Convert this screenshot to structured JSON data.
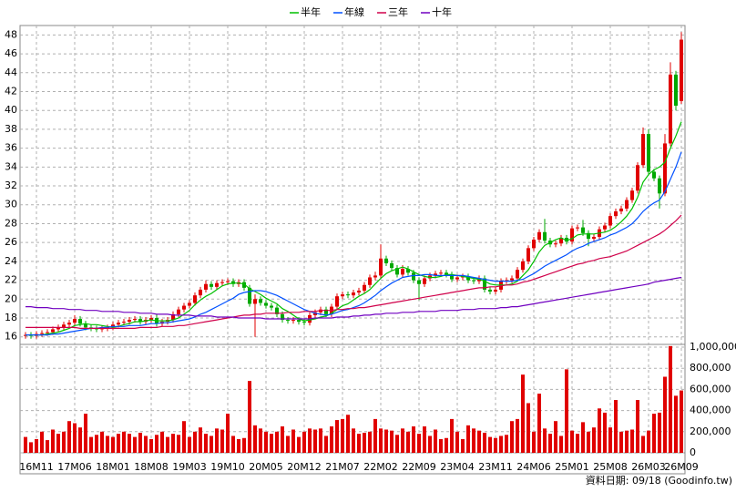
{
  "chart_data": {
    "type": "candlestick",
    "categories": [
      null,
      null,
      "16M11",
      null,
      null,
      null,
      null,
      null,
      null,
      "17M06",
      null,
      null,
      null,
      null,
      null,
      null,
      "18M01",
      null,
      null,
      null,
      null,
      null,
      null,
      "18M08",
      null,
      null,
      null,
      null,
      null,
      null,
      "19M03",
      null,
      null,
      null,
      null,
      null,
      null,
      "19M10",
      null,
      null,
      null,
      null,
      null,
      null,
      "20M05",
      null,
      null,
      null,
      null,
      null,
      null,
      "20M12",
      null,
      null,
      null,
      null,
      null,
      null,
      "21M07",
      null,
      null,
      null,
      null,
      null,
      null,
      "22M02",
      null,
      null,
      null,
      null,
      null,
      null,
      "22M09",
      null,
      null,
      null,
      null,
      null,
      null,
      "23M04",
      null,
      null,
      null,
      null,
      null,
      null,
      "23M11",
      null,
      null,
      null,
      null,
      null,
      null,
      "24M06",
      null,
      null,
      null,
      null,
      null,
      null,
      "25M01",
      null,
      null,
      null,
      null,
      null,
      null,
      "25M08",
      null,
      null,
      null,
      null,
      null,
      null,
      "26M03",
      null,
      null,
      null,
      null,
      null,
      "26M09"
    ],
    "open": [
      16.1,
      16.2,
      16.1,
      16.3,
      16.4,
      16.5,
      16.8,
      17.0,
      17.3,
      17.5,
      17.9,
      17.4,
      17.0,
      16.9,
      16.8,
      16.9,
      17.0,
      17.3,
      17.5,
      17.6,
      17.8,
      17.9,
      17.6,
      17.8,
      18.0,
      17.4,
      17.6,
      17.8,
      18.4,
      18.9,
      19.3,
      19.6,
      20.4,
      21.0,
      21.6,
      21.3,
      21.7,
      21.8,
      21.9,
      21.6,
      21.8,
      21.2,
      19.5,
      20.0,
      19.6,
      19.3,
      19.1,
      18.4,
      17.8,
      17.7,
      17.8,
      17.6,
      17.5,
      18.3,
      18.6,
      18.9,
      18.4,
      19.2,
      20.3,
      20.5,
      20.4,
      20.7,
      20.9,
      21.5,
      22.3,
      22.5,
      24.3,
      23.8,
      23.3,
      22.6,
      23.2,
      22.8,
      22.0,
      21.6,
      22.2,
      22.5,
      22.7,
      22.8,
      22.6,
      22.1,
      22.3,
      22.4,
      22.0,
      21.9,
      22.2,
      21.0,
      20.8,
      21.0,
      21.9,
      22.0,
      22.2,
      23.1,
      24.0,
      25.4,
      26.3,
      27.1,
      26.2,
      25.8,
      25.9,
      26.5,
      26.1,
      27.5,
      27.6,
      27.0,
      26.4,
      26.6,
      27.4,
      27.8,
      28.8,
      29.3,
      29.6,
      30.5,
      31.5,
      34.2,
      37.5,
      33.5,
      32.8,
      31.2,
      36.5,
      43.8,
      41.0
    ],
    "high": [
      16.5,
      16.5,
      16.6,
      16.7,
      16.8,
      17.1,
      17.3,
      17.6,
      17.8,
      18.3,
      18.2,
      17.7,
      17.3,
      17.2,
      17.2,
      17.3,
      17.6,
      17.8,
      17.9,
      18.1,
      18.2,
      18.2,
      18.1,
      18.3,
      18.4,
      17.9,
      18.1,
      18.7,
      19.2,
      19.6,
      19.9,
      20.7,
      21.3,
      22.0,
      21.9,
      22.0,
      22.1,
      22.2,
      22.2,
      22.1,
      22.1,
      21.5,
      20.5,
      20.3,
      19.9,
      19.6,
      19.4,
      18.7,
      18.1,
      18.1,
      18.1,
      17.9,
      18.6,
      18.9,
      19.2,
      19.2,
      19.5,
      20.6,
      20.8,
      20.8,
      21.0,
      21.2,
      21.8,
      22.6,
      22.9,
      25.8,
      24.6,
      24.1,
      23.6,
      23.6,
      23.5,
      23.1,
      22.3,
      22.5,
      22.8,
      23.0,
      23.1,
      23.1,
      22.9,
      22.6,
      22.7,
      22.7,
      22.3,
      22.5,
      22.5,
      21.3,
      21.3,
      22.2,
      22.3,
      22.5,
      23.4,
      24.3,
      25.7,
      26.6,
      27.4,
      28.5,
      26.5,
      26.2,
      26.8,
      26.8,
      27.8,
      27.9,
      28.4,
      27.3,
      26.9,
      27.7,
      28.1,
      29.1,
      29.6,
      29.9,
      30.8,
      31.8,
      34.5,
      38.2,
      38.0,
      33.8,
      33.1,
      37.5,
      45.1,
      44.2,
      48.3
    ],
    "low": [
      15.8,
      15.8,
      15.8,
      16.0,
      16.1,
      16.2,
      16.5,
      16.7,
      17.0,
      17.2,
      17.1,
      16.7,
      16.6,
      16.5,
      16.5,
      16.6,
      16.7,
      17.0,
      17.2,
      17.3,
      17.5,
      17.3,
      17.3,
      17.5,
      17.1,
      17.1,
      17.3,
      17.5,
      18.1,
      18.6,
      19.0,
      19.3,
      20.1,
      20.7,
      21.0,
      21.0,
      21.4,
      21.5,
      21.3,
      21.3,
      20.9,
      19.2,
      16.0,
      19.3,
      19.0,
      18.8,
      18.1,
      17.5,
      17.4,
      17.4,
      17.3,
      17.2,
      17.2,
      18.0,
      18.3,
      18.1,
      18.1,
      18.9,
      20.0,
      20.1,
      20.1,
      20.4,
      20.6,
      21.2,
      22.0,
      22.2,
      23.5,
      23.0,
      22.3,
      22.3,
      22.5,
      21.7,
      19.9,
      21.3,
      21.9,
      22.2,
      22.4,
      22.3,
      21.8,
      21.8,
      22.0,
      21.7,
      21.6,
      21.6,
      20.7,
      20.5,
      20.5,
      20.7,
      21.6,
      21.7,
      21.9,
      22.8,
      23.7,
      25.1,
      26.0,
      25.9,
      25.5,
      25.5,
      25.6,
      25.8,
      25.8,
      27.2,
      26.7,
      25.6,
      26.1,
      26.3,
      27.1,
      27.5,
      28.5,
      29.0,
      29.3,
      30.2,
      31.2,
      33.9,
      33.2,
      32.5,
      29.6,
      30.9,
      36.2,
      40.0,
      40.7
    ],
    "close": [
      16.2,
      16.1,
      16.3,
      16.4,
      16.5,
      16.8,
      17.0,
      17.3,
      17.5,
      17.9,
      17.4,
      17.0,
      16.9,
      16.8,
      16.9,
      17.0,
      17.3,
      17.5,
      17.6,
      17.8,
      17.9,
      17.6,
      17.8,
      18.0,
      17.4,
      17.6,
      17.8,
      18.4,
      18.9,
      19.3,
      19.6,
      20.4,
      21.0,
      21.6,
      21.3,
      21.7,
      21.8,
      21.9,
      21.6,
      21.8,
      21.2,
      19.5,
      20.0,
      19.6,
      19.3,
      19.1,
      18.4,
      17.8,
      17.7,
      17.8,
      17.6,
      17.5,
      18.3,
      18.6,
      18.9,
      18.4,
      19.2,
      20.3,
      20.5,
      20.4,
      20.7,
      20.9,
      21.5,
      22.3,
      22.5,
      24.3,
      23.8,
      23.3,
      22.6,
      23.2,
      22.8,
      22.0,
      21.6,
      22.2,
      22.5,
      22.7,
      22.8,
      22.6,
      22.1,
      22.3,
      22.4,
      22.0,
      21.9,
      22.2,
      21.0,
      20.8,
      21.0,
      21.9,
      22.0,
      22.2,
      23.1,
      24.0,
      25.4,
      26.3,
      27.1,
      26.2,
      25.8,
      25.9,
      26.5,
      26.1,
      27.5,
      27.6,
      27.0,
      26.4,
      26.6,
      27.4,
      27.8,
      28.8,
      29.3,
      29.6,
      30.5,
      31.5,
      34.2,
      37.5,
      33.5,
      32.8,
      31.2,
      36.5,
      43.8,
      40.5,
      47.5
    ],
    "up_color": "#e00000",
    "down_color": "#00a800",
    "ylim": [
      15.2,
      49.0
    ],
    "yticks": [
      16,
      18,
      20,
      22,
      24,
      26,
      28,
      30,
      32,
      34,
      36,
      38,
      40,
      42,
      44,
      46,
      48
    ],
    "grid": true,
    "series": [
      {
        "name": "半年",
        "color": "#00c000",
        "values": [
          16.2,
          16.2,
          16.2,
          16.2,
          16.3,
          16.4,
          16.5,
          16.7,
          16.9,
          17.2,
          17.3,
          17.4,
          17.3,
          17.3,
          17.2,
          17.1,
          17.0,
          17.1,
          17.3,
          17.4,
          17.6,
          17.6,
          17.7,
          17.8,
          17.7,
          17.7,
          17.7,
          17.8,
          18.0,
          18.4,
          18.8,
          19.4,
          19.9,
          20.3,
          20.6,
          21.0,
          21.4,
          21.6,
          21.7,
          21.7,
          21.6,
          21.1,
          20.8,
          20.5,
          20.1,
          19.8,
          19.5,
          19.0,
          18.7,
          18.3,
          17.9,
          17.7,
          17.8,
          17.9,
          18.1,
          18.2,
          18.5,
          18.9,
          19.3,
          19.5,
          19.9,
          20.3,
          20.6,
          21.0,
          21.6,
          22.2,
          22.7,
          23.0,
          23.2,
          23.4,
          23.2,
          22.9,
          22.6,
          22.4,
          22.3,
          22.3,
          22.4,
          22.6,
          22.6,
          22.5,
          22.4,
          22.3,
          22.2,
          22.1,
          21.9,
          21.6,
          21.5,
          21.5,
          21.5,
          21.6,
          21.9,
          22.5,
          23.1,
          24.0,
          25.0,
          25.7,
          26.0,
          26.3,
          26.5,
          26.2,
          26.4,
          26.8,
          26.9,
          26.9,
          26.9,
          27.0,
          27.1,
          27.3,
          27.7,
          28.2,
          28.8,
          29.6,
          30.8,
          32.4,
          33.2,
          33.7,
          34.0,
          34.5,
          36.0,
          37.3,
          38.8
        ]
      },
      {
        "name": "年線",
        "color": "#0050ff",
        "values": [
          16.2,
          16.2,
          16.2,
          16.2,
          16.2,
          16.3,
          16.3,
          16.4,
          16.5,
          16.6,
          16.7,
          16.8,
          16.9,
          16.9,
          17.0,
          17.0,
          17.1,
          17.1,
          17.1,
          17.2,
          17.2,
          17.2,
          17.3,
          17.4,
          17.4,
          17.5,
          17.5,
          17.6,
          17.7,
          17.8,
          17.9,
          18.1,
          18.4,
          18.6,
          18.9,
          19.2,
          19.5,
          19.8,
          20.1,
          20.5,
          20.7,
          20.8,
          20.9,
          20.9,
          20.8,
          20.6,
          20.4,
          20.1,
          19.8,
          19.5,
          19.2,
          18.9,
          18.7,
          18.5,
          18.4,
          18.3,
          18.4,
          18.6,
          18.8,
          18.9,
          19.1,
          19.3,
          19.6,
          20.0,
          20.4,
          20.9,
          21.3,
          21.7,
          22.0,
          22.3,
          22.4,
          22.5,
          22.5,
          22.6,
          22.6,
          22.5,
          22.5,
          22.5,
          22.5,
          22.5,
          22.5,
          22.4,
          22.3,
          22.2,
          22.1,
          22.0,
          21.9,
          21.9,
          21.9,
          21.9,
          22.0,
          22.1,
          22.4,
          22.7,
          23.1,
          23.5,
          23.8,
          24.1,
          24.4,
          24.7,
          25.1,
          25.4,
          25.6,
          25.9,
          26.1,
          26.3,
          26.5,
          26.8,
          27.0,
          27.3,
          27.6,
          28.0,
          28.6,
          29.3,
          29.8,
          30.2,
          30.5,
          31.4,
          32.7,
          34.0,
          35.6
        ]
      },
      {
        "name": "三年",
        "color": "#d0004a",
        "values": [
          17.0,
          17.0,
          17.0,
          17.0,
          17.0,
          17.0,
          17.0,
          17.0,
          17.0,
          17.0,
          16.9,
          16.9,
          16.9,
          16.9,
          16.9,
          16.9,
          16.9,
          16.9,
          16.9,
          16.9,
          16.9,
          17.0,
          17.0,
          17.0,
          17.0,
          17.1,
          17.1,
          17.1,
          17.2,
          17.2,
          17.3,
          17.4,
          17.5,
          17.6,
          17.7,
          17.8,
          17.9,
          18.0,
          18.1,
          18.2,
          18.3,
          18.3,
          18.4,
          18.4,
          18.5,
          18.5,
          18.5,
          18.5,
          18.6,
          18.6,
          18.6,
          18.7,
          18.7,
          18.7,
          18.8,
          18.8,
          18.8,
          18.9,
          18.9,
          19.0,
          19.0,
          19.1,
          19.1,
          19.2,
          19.3,
          19.4,
          19.5,
          19.6,
          19.7,
          19.8,
          19.9,
          20.0,
          20.1,
          20.2,
          20.3,
          20.4,
          20.5,
          20.6,
          20.7,
          20.8,
          20.9,
          21.0,
          21.1,
          21.2,
          21.2,
          21.3,
          21.3,
          21.4,
          21.5,
          21.5,
          21.6,
          21.8,
          21.9,
          22.1,
          22.3,
          22.5,
          22.7,
          22.9,
          23.1,
          23.3,
          23.5,
          23.7,
          23.8,
          24.0,
          24.1,
          24.3,
          24.4,
          24.5,
          24.7,
          24.9,
          25.1,
          25.4,
          25.7,
          26.0,
          26.3,
          26.6,
          26.9,
          27.3,
          27.8,
          28.3,
          28.9
        ]
      },
      {
        "name": "十年",
        "color": "#7000c0",
        "values": [
          19.2,
          19.2,
          19.1,
          19.1,
          19.1,
          19.0,
          19.0,
          19.0,
          18.9,
          18.9,
          18.9,
          18.8,
          18.8,
          18.8,
          18.7,
          18.7,
          18.7,
          18.7,
          18.6,
          18.6,
          18.6,
          18.5,
          18.5,
          18.5,
          18.4,
          18.4,
          18.4,
          18.3,
          18.3,
          18.3,
          18.3,
          18.2,
          18.2,
          18.2,
          18.2,
          18.1,
          18.1,
          18.1,
          18.1,
          18.0,
          18.0,
          18.0,
          18.0,
          18.0,
          17.9,
          17.9,
          17.9,
          17.9,
          17.9,
          17.9,
          17.9,
          17.9,
          17.9,
          18.0,
          18.0,
          18.0,
          18.0,
          18.1,
          18.1,
          18.1,
          18.2,
          18.2,
          18.3,
          18.3,
          18.4,
          18.4,
          18.5,
          18.5,
          18.5,
          18.6,
          18.6,
          18.6,
          18.7,
          18.7,
          18.7,
          18.7,
          18.8,
          18.8,
          18.8,
          18.8,
          18.9,
          18.9,
          18.9,
          19.0,
          19.0,
          19.0,
          19.0,
          19.1,
          19.1,
          19.2,
          19.2,
          19.3,
          19.4,
          19.5,
          19.6,
          19.7,
          19.8,
          19.9,
          20.0,
          20.1,
          20.2,
          20.3,
          20.4,
          20.5,
          20.6,
          20.7,
          20.8,
          20.9,
          21.0,
          21.1,
          21.2,
          21.3,
          21.4,
          21.5,
          21.6,
          21.8,
          21.9,
          22.0,
          22.1,
          22.2,
          22.3
        ]
      }
    ],
    "volume": {
      "color": "#e00000",
      "values": [
        150000,
        100000,
        130000,
        200000,
        120000,
        220000,
        180000,
        200000,
        300000,
        280000,
        240000,
        370000,
        150000,
        170000,
        200000,
        160000,
        150000,
        180000,
        200000,
        180000,
        150000,
        190000,
        160000,
        130000,
        170000,
        200000,
        150000,
        180000,
        170000,
        300000,
        150000,
        200000,
        240000,
        180000,
        160000,
        230000,
        220000,
        370000,
        160000,
        130000,
        140000,
        680000,
        260000,
        230000,
        200000,
        180000,
        200000,
        250000,
        160000,
        220000,
        150000,
        200000,
        230000,
        220000,
        230000,
        160000,
        250000,
        310000,
        320000,
        360000,
        230000,
        180000,
        190000,
        200000,
        320000,
        230000,
        220000,
        210000,
        170000,
        230000,
        200000,
        250000,
        180000,
        250000,
        160000,
        220000,
        130000,
        140000,
        320000,
        200000,
        130000,
        260000,
        230000,
        210000,
        190000,
        150000,
        140000,
        160000,
        170000,
        300000,
        320000,
        740000,
        470000,
        200000,
        560000,
        230000,
        180000,
        300000,
        160000,
        790000,
        210000,
        180000,
        290000,
        200000,
        240000,
        420000,
        380000,
        240000,
        500000,
        200000,
        210000,
        220000,
        500000,
        160000,
        210000,
        370000,
        380000,
        720000,
        1010000,
        540000,
        590000
      ],
      "ylim": [
        0,
        1026000
      ],
      "yticks": [
        0,
        {
          "value": 200000,
          "label": "200,000"
        },
        {
          "value": 400000,
          "label": "400,000"
        },
        {
          "value": 600000,
          "label": "600,000"
        },
        {
          "value": 800000,
          "label": "800,000"
        },
        {
          "value": 1000000,
          "label": "1,000,000"
        }
      ]
    },
    "footer": "資料日期: 09/18 (Goodinfo.tw)"
  }
}
